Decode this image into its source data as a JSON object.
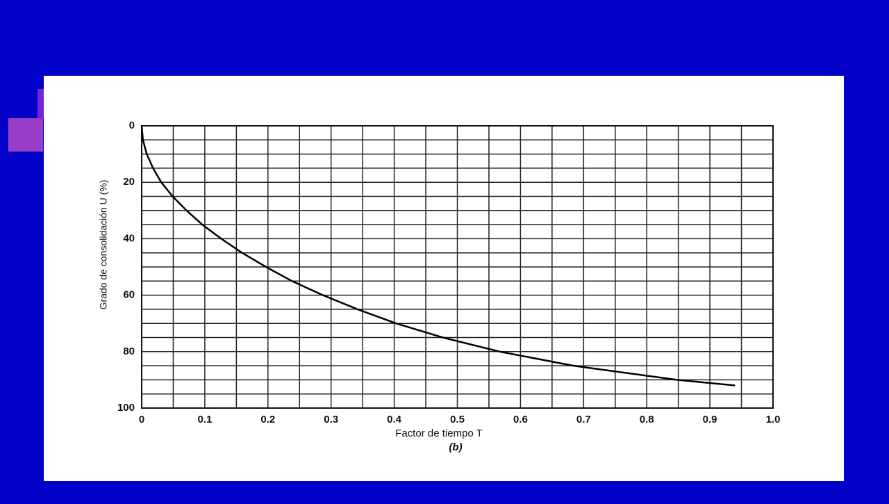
{
  "chart_data": {
    "type": "line",
    "xlabel": "Factor de tiempo T",
    "ylabel": "Grado de consolidación U (%)",
    "caption": "(b)",
    "x": [
      0,
      0.002,
      0.008,
      0.018,
      0.031,
      0.049,
      0.071,
      0.096,
      0.126,
      0.159,
      0.197,
      0.238,
      0.287,
      0.342,
      0.403,
      0.477,
      0.567,
      0.684,
      0.848,
      0.94
    ],
    "series": [
      {
        "color": "#000000",
        "values": [
          0,
          5,
          10,
          15,
          20,
          25,
          30,
          35,
          40,
          45,
          50,
          55,
          60,
          65,
          70,
          75,
          80,
          85,
          90,
          92
        ]
      }
    ],
    "xlim": [
      0,
      1
    ],
    "ylim": [
      0,
      100
    ],
    "y_inverted": true,
    "xticks": [
      0,
      0.1,
      0.2,
      0.3,
      0.4,
      0.5,
      0.6,
      0.7,
      0.8,
      0.9,
      {
        "value": 1,
        "label": "1.0"
      }
    ],
    "yticks": [
      0,
      20,
      40,
      60,
      80,
      100
    ],
    "xminorticks": [
      0.05,
      0.15,
      0.25,
      0.35,
      0.45,
      0.55,
      0.65,
      0.75,
      0.85,
      0.95
    ],
    "yminorticks": [
      5,
      10,
      15,
      25,
      30,
      35,
      45,
      50,
      55,
      65,
      70,
      75,
      85,
      90,
      95
    ],
    "grid": true
  }
}
